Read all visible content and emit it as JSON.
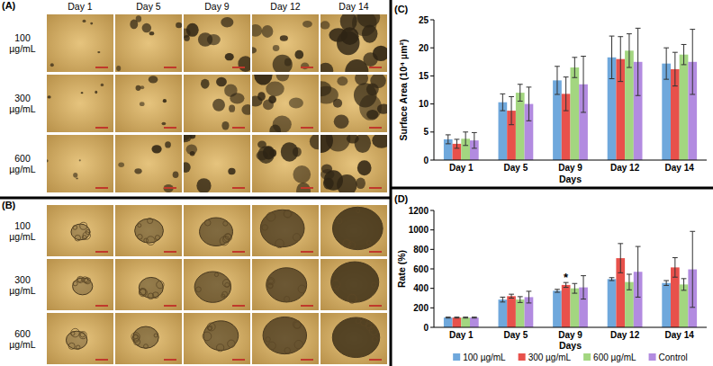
{
  "image_panels": [
    {
      "label": "(A)",
      "columns": [
        "Day 1",
        "Day 5",
        "Day 9",
        "Day 12",
        "Day 14"
      ],
      "rows": [
        "100 µg/mL",
        "300 µg/mL",
        "600 µg/mL"
      ]
    },
    {
      "label": "(B)",
      "rows": [
        "100 µg/mL",
        "300 µg/mL",
        "600 µg/mL"
      ]
    }
  ],
  "chart_data": [
    {
      "type": "bar",
      "title": "(C)",
      "x_label": "Days",
      "y_label": "Surface Area (10⁴ µm²)",
      "categories": [
        "Day 1",
        "Day 5",
        "Day 9",
        "Day 12",
        "Day 14"
      ],
      "ylim": [
        0,
        25
      ],
      "yticks": [
        0,
        5,
        10,
        15,
        20,
        25
      ],
      "grid": false,
      "series": [
        {
          "color": "#6fa8dc",
          "values": [
            3.7,
            10.3,
            14.2,
            18.3,
            17.2
          ],
          "errors": [
            0.8,
            1.5,
            2.5,
            3.8,
            2.8
          ]
        },
        {
          "color": "#e8514b",
          "values": [
            2.9,
            8.8,
            11.8,
            18.0,
            16.2
          ],
          "errors": [
            0.8,
            2.5,
            3.0,
            4.0,
            3.0
          ]
        },
        {
          "color": "#a3d680",
          "values": [
            3.8,
            12.0,
            16.5,
            19.5,
            18.8
          ],
          "errors": [
            1.2,
            1.5,
            1.8,
            3.0,
            1.8
          ]
        },
        {
          "color": "#b28be0",
          "values": [
            3.5,
            10.0,
            13.5,
            17.5,
            17.5
          ],
          "errors": [
            1.4,
            3.0,
            5.0,
            6.0,
            5.8
          ]
        }
      ]
    },
    {
      "type": "bar",
      "title": "(D)",
      "x_label": "Days",
      "y_label": "Rate (%)",
      "categories": [
        "Day 1",
        "Day 5",
        "Day 9",
        "Day 12",
        "Day 14"
      ],
      "ylim": [
        0,
        1200
      ],
      "yticks": [
        0,
        200,
        400,
        600,
        800,
        1000,
        1200
      ],
      "grid": false,
      "legend": "bottom",
      "series": [
        {
          "name": "100 µg/mL",
          "color": "#6fa8dc",
          "values": [
            100,
            285,
            375,
            495,
            455
          ],
          "errors": [
            5,
            25,
            15,
            15,
            25
          ]
        },
        {
          "name": "300 µg/mL",
          "color": "#e8514b",
          "values": [
            100,
            320,
            435,
            710,
            615
          ],
          "errors": [
            5,
            20,
            25,
            150,
            100
          ]
        },
        {
          "name": "600 µg/mL",
          "color": "#a3d680",
          "values": [
            100,
            285,
            400,
            465,
            440
          ],
          "errors": [
            5,
            30,
            50,
            80,
            60
          ]
        },
        {
          "name": "Control",
          "color": "#b28be0",
          "values": [
            100,
            310,
            410,
            570,
            595
          ],
          "errors": [
            5,
            60,
            120,
            260,
            390
          ]
        }
      ],
      "annotations": [
        {
          "text": "*",
          "series": 1,
          "category": "Day 9"
        }
      ]
    }
  ]
}
